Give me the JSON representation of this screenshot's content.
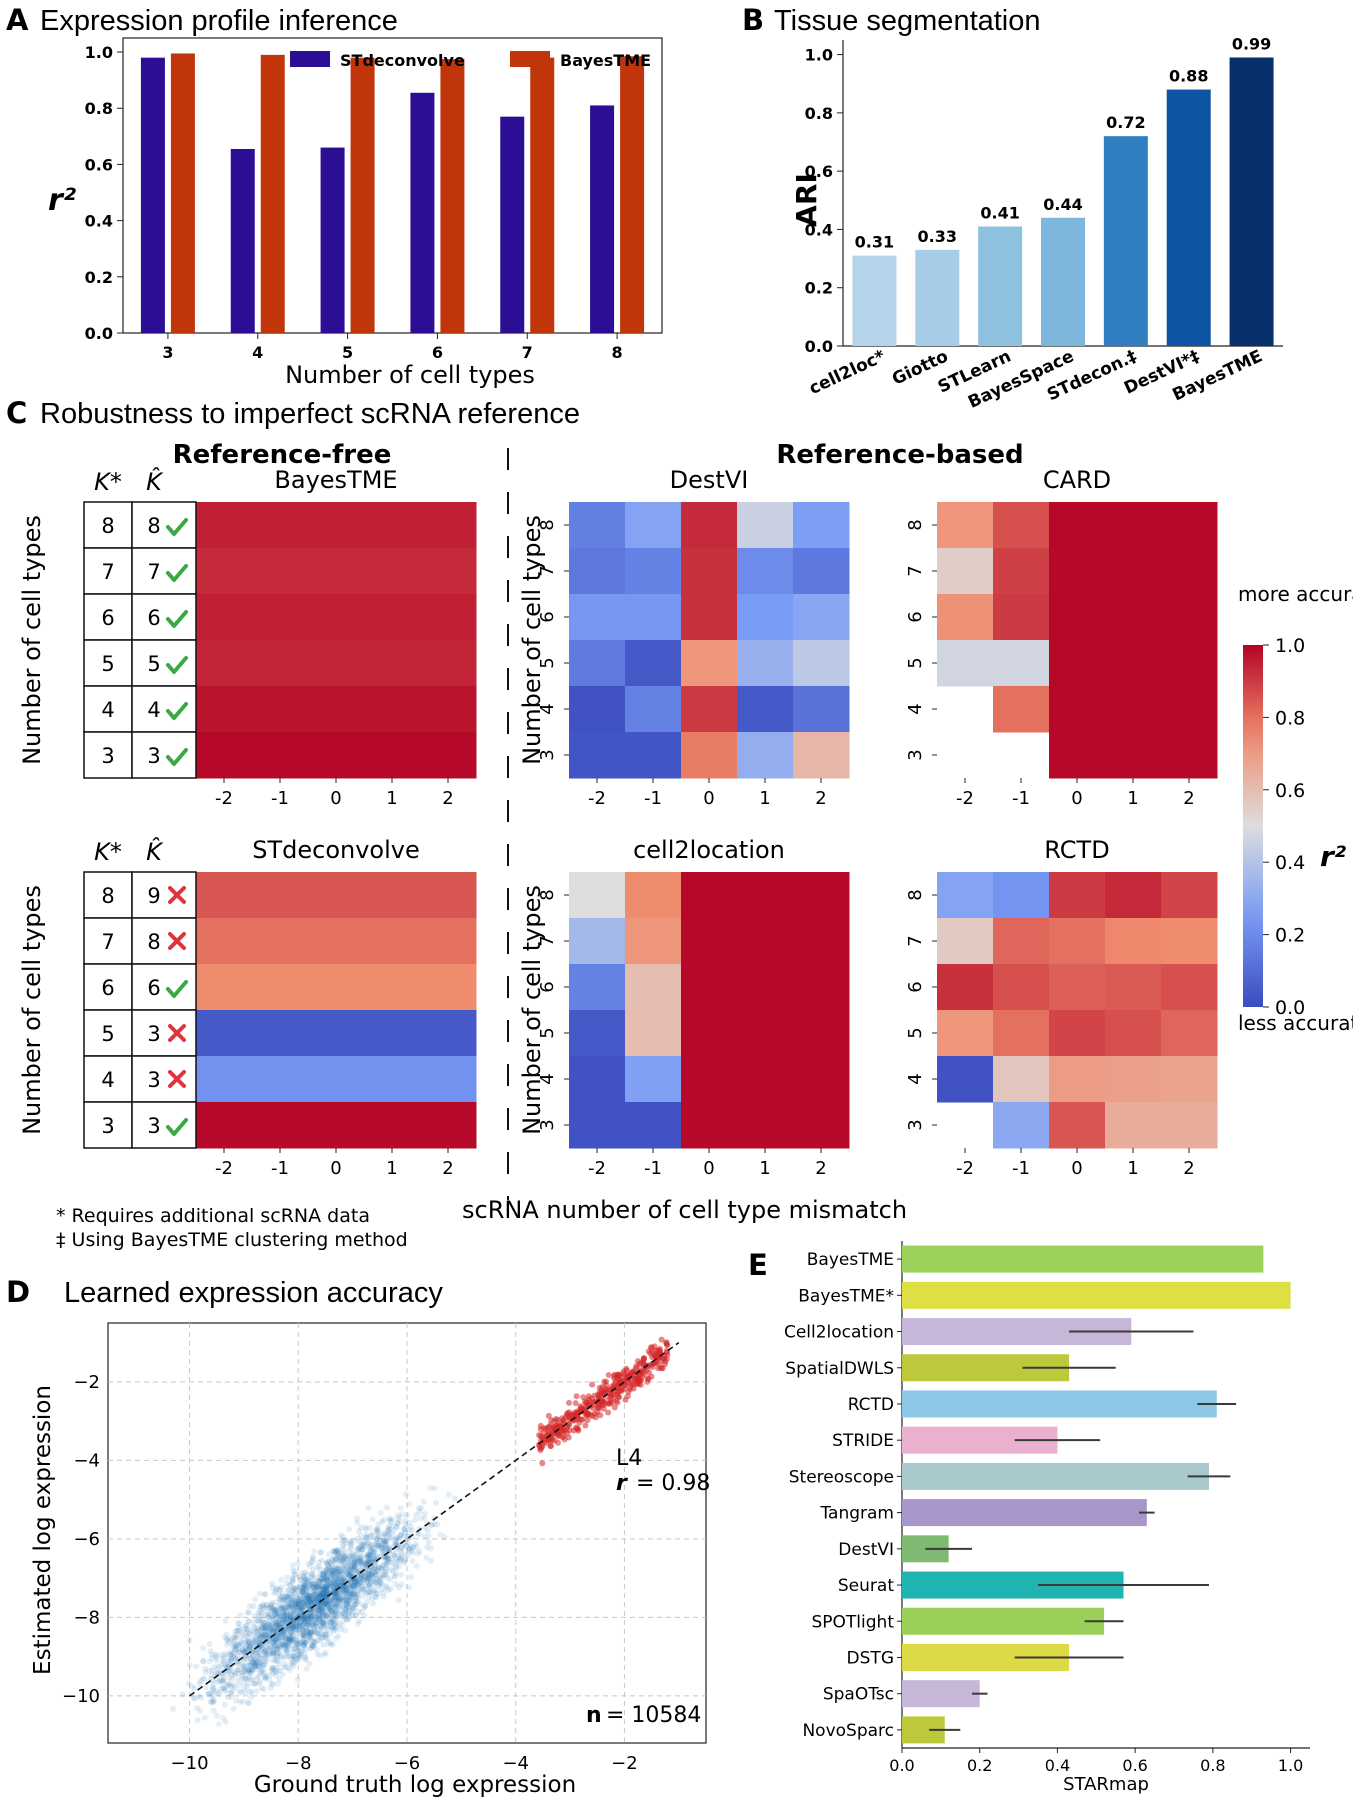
{
  "panels": {
    "A": {
      "letter": "A",
      "title": "Expression profile inference"
    },
    "B": {
      "letter": "B",
      "title": "Tissue segmentation"
    },
    "C": {
      "letter": "C",
      "title": "Robustness to imperfect scRNA reference",
      "ref_free_label": "Reference-free",
      "ref_based_label": "Reference-based",
      "xlabel": "scRNA number of cell type mismatch",
      "ylabel": "Number of cell types"
    },
    "D": {
      "letter": "D",
      "title": "Learned expression accuracy"
    },
    "E": {
      "letter": "E"
    }
  },
  "footnotes": {
    "star": "* Requires additional scRNA data",
    "dagger": "‡ Using BayesTME clustering method"
  },
  "colors": {
    "stdeconvolve": "#2c0e94",
    "bayestme": "#c0350a",
    "green_check": "#3aa845",
    "red_cross": "#e0343c"
  },
  "chart_data": [
    {
      "id": "A",
      "type": "bar",
      "categories": [
        "3",
        "4",
        "5",
        "6",
        "7",
        "8"
      ],
      "series": [
        {
          "name": "STdeconvolve",
          "values": [
            0.98,
            0.655,
            0.66,
            0.855,
            0.77,
            0.81
          ]
        },
        {
          "name": "BayesTME",
          "values": [
            0.995,
            0.99,
            0.98,
            0.975,
            0.98,
            0.985
          ]
        }
      ],
      "xlabel": "Number of cell types",
      "ylabel": "r²",
      "ylim": [
        0,
        1.05
      ],
      "yticks": [
        "0.0",
        "0.2",
        "0.4",
        "0.6",
        "0.8",
        "1.0"
      ]
    },
    {
      "id": "B",
      "type": "bar",
      "categories": [
        "cell2loc*",
        "Giotto",
        "STLearn",
        "BayesSpace",
        "STdecon.‡",
        "DestVI*‡",
        "BayesTME"
      ],
      "values": [
        0.31,
        0.33,
        0.41,
        0.44,
        0.72,
        0.88,
        0.99
      ],
      "labels": [
        "0.31",
        "0.33",
        "0.41",
        "0.44",
        "0.72",
        "0.88",
        "0.99"
      ],
      "colors": [
        "#b5d4e9",
        "#a7cde6",
        "#8ec0e0",
        "#7db7db",
        "#2f7fc1",
        "#0d55a3",
        "#08306b"
      ],
      "ylabel": "ARI",
      "ylim": [
        0,
        1.05
      ],
      "yticks": [
        "0.0",
        "0.2",
        "0.4",
        "0.6",
        "0.8",
        "1.0"
      ]
    },
    {
      "id": "C",
      "type": "heatmap",
      "x": [
        "-2",
        "-1",
        "0",
        "1",
        "2"
      ],
      "y": [
        "8",
        "7",
        "6",
        "5",
        "4",
        "3"
      ],
      "colorbar": {
        "label": "r²",
        "top": "more accurate",
        "bottom": "less accurate",
        "ticks": [
          "0.0",
          "0.2",
          "0.4",
          "0.6",
          "0.8",
          "1.0"
        ],
        "range": [
          0,
          1
        ]
      },
      "K_header": "K*",
      "Khat_header": "K̂",
      "heatmaps": [
        {
          "title": "BayesTME",
          "values": [
            [
              0.95,
              0.95,
              0.95,
              0.95,
              0.95
            ],
            [
              0.93,
              0.93,
              0.93,
              0.93,
              0.93
            ],
            [
              0.95,
              0.95,
              0.95,
              0.95,
              0.95
            ],
            [
              0.94,
              0.94,
              0.94,
              0.94,
              0.94
            ],
            [
              0.97,
              0.97,
              0.97,
              0.97,
              0.97
            ],
            [
              0.99,
              0.99,
              0.99,
              0.99,
              0.99
            ]
          ]
        },
        {
          "title": "DestVI",
          "values": [
            [
              0.16,
              0.28,
              0.93,
              0.45,
              0.26
            ],
            [
              0.14,
              0.17,
              0.92,
              0.2,
              0.14
            ],
            [
              0.24,
              0.24,
              0.92,
              0.25,
              0.29
            ],
            [
              0.15,
              0.04,
              0.72,
              0.33,
              0.42
            ],
            [
              0.02,
              0.17,
              0.9,
              0.04,
              0.12
            ],
            [
              0.03,
              0.03,
              0.78,
              0.32,
              0.62
            ]
          ]
        },
        {
          "title": "CARD",
          "values": [
            [
              0.72,
              0.86,
              0.99,
              0.99,
              0.99
            ],
            [
              0.55,
              0.89,
              0.99,
              0.99,
              0.99
            ],
            [
              0.73,
              0.9,
              0.99,
              0.99,
              0.99
            ],
            [
              0.47,
              0.47,
              0.99,
              0.99,
              0.99
            ],
            [
              null,
              0.8,
              0.99,
              0.99,
              0.99
            ],
            [
              null,
              null,
              0.99,
              0.99,
              0.99
            ]
          ]
        },
        {
          "title": "STdeconvolve",
          "values": [
            [
              0.85,
              0.85,
              0.85,
              0.85,
              0.85
            ],
            [
              0.8,
              0.8,
              0.8,
              0.8,
              0.8
            ],
            [
              0.75,
              0.75,
              0.75,
              0.75,
              0.75
            ],
            [
              0.04,
              0.04,
              0.04,
              0.04,
              0.04
            ],
            [
              0.22,
              0.22,
              0.22,
              0.22,
              0.22
            ],
            [
              0.99,
              0.99,
              0.99,
              0.99,
              0.99
            ]
          ]
        },
        {
          "title": "cell2location",
          "values": [
            [
              0.5,
              0.75,
              0.99,
              0.99,
              0.99
            ],
            [
              0.36,
              0.72,
              0.99,
              0.99,
              0.99
            ],
            [
              0.17,
              0.6,
              0.99,
              0.99,
              0.99
            ],
            [
              0.04,
              0.6,
              0.99,
              0.99,
              0.99
            ],
            [
              0.02,
              0.27,
              0.99,
              0.99,
              0.99
            ],
            [
              0.02,
              0.02,
              0.99,
              0.99,
              0.99
            ]
          ]
        },
        {
          "title": "RCTD",
          "values": [
            [
              0.28,
              0.23,
              0.9,
              0.93,
              0.88
            ],
            [
              0.56,
              0.82,
              0.8,
              0.76,
              0.75
            ],
            [
              0.92,
              0.86,
              0.83,
              0.84,
              0.86
            ],
            [
              0.72,
              0.8,
              0.88,
              0.86,
              0.82
            ],
            [
              0.02,
              0.57,
              0.7,
              0.69,
              0.68
            ],
            [
              null,
              0.3,
              0.85,
              0.65,
              0.65
            ]
          ]
        }
      ],
      "tables": [
        {
          "k": [
            "8",
            "7",
            "6",
            "5",
            "4",
            "3"
          ],
          "khat": [
            "8",
            "7",
            "6",
            "5",
            "4",
            "3"
          ],
          "ok": [
            true,
            true,
            true,
            true,
            true,
            true
          ]
        },
        {
          "k": [
            "8",
            "7",
            "6",
            "5",
            "4",
            "3"
          ],
          "khat": [
            "9",
            "8",
            "6",
            "3",
            "3",
            "3"
          ],
          "ok": [
            false,
            false,
            true,
            false,
            false,
            true
          ]
        }
      ]
    },
    {
      "id": "D",
      "type": "scatter",
      "xlabel": "Ground truth log expression",
      "ylabel": "Estimated log expression",
      "xlim": [
        -11.5,
        -0.5
      ],
      "ylim": [
        -11.2,
        -0.5
      ],
      "xticks": [
        "−10",
        "−8",
        "−6",
        "−4",
        "−2"
      ],
      "yticks": [
        "−2",
        "−4",
        "−6",
        "−8",
        "−10"
      ],
      "annotation_layer": "L4",
      "r_label": "r",
      "r_value": "= 0.98",
      "n_label": "n",
      "n_value": "= 10584",
      "highlight_color": "#d62728",
      "point_color": "#1f77b4"
    },
    {
      "id": "E",
      "type": "bar",
      "orientation": "horizontal",
      "categories": [
        "BayesTME",
        "BayesTME*",
        "Cell2location",
        "SpatialDWLS",
        "RCTD",
        "STRIDE",
        "Stereoscope",
        "Tangram",
        "DestVI",
        "Seurat",
        "SPOTlight",
        "DSTG",
        "SpaOTsc",
        "NovoSparc"
      ],
      "values": [
        0.93,
        1.0,
        0.59,
        0.43,
        0.81,
        0.4,
        0.79,
        0.63,
        0.12,
        0.57,
        0.52,
        0.43,
        0.2,
        0.11
      ],
      "errors": [
        null,
        null,
        0.16,
        0.12,
        0.05,
        0.11,
        0.055,
        0.02,
        0.06,
        0.22,
        0.05,
        0.14,
        0.02,
        0.04
      ],
      "colors": [
        "#9bd25b",
        "#dede45",
        "#c6b6d8",
        "#bdc93a",
        "#8cc8e6",
        "#eab0cf",
        "#a9c9cd",
        "#a796c9",
        "#7fba73",
        "#1fb3b1",
        "#9ad059",
        "#dcdb46",
        "#c6b6d8",
        "#bdc93a"
      ],
      "xlabel": "STARmap",
      "xlim": [
        0,
        1.05
      ],
      "xticks": [
        "0.0",
        "0.2",
        "0.4",
        "0.6",
        "0.8",
        "1.0"
      ]
    }
  ]
}
